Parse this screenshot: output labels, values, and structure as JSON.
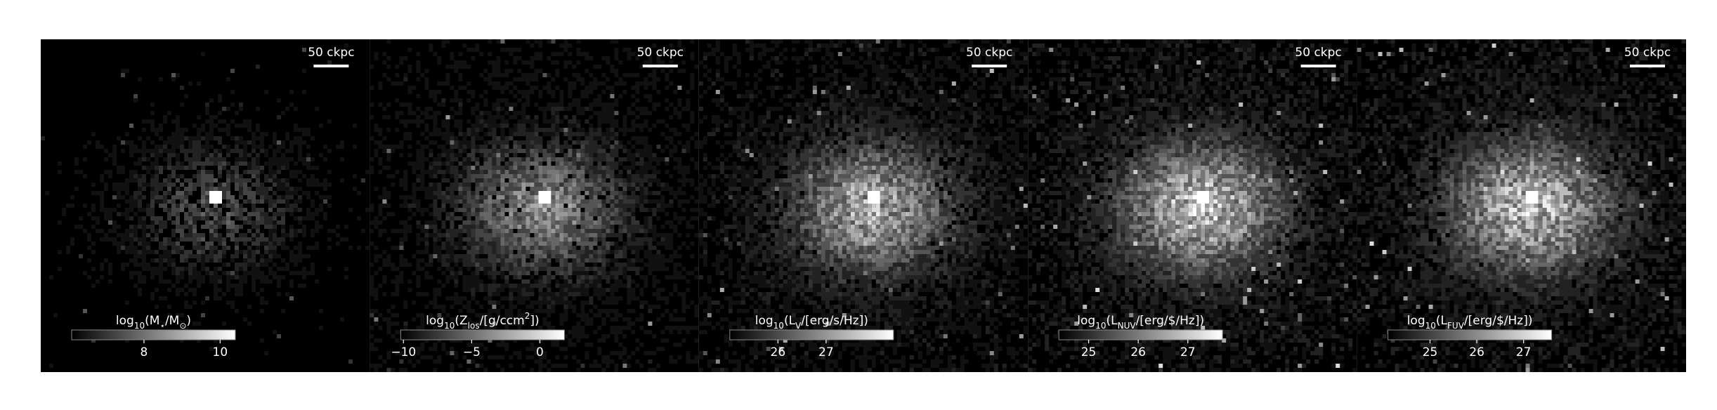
{
  "panels": [
    {
      "scale_bar": "50 ckpc",
      "colorbar": {
        "label": [
          "log",
          "10",
          "(M",
          "⋆",
          "/M",
          "⊙",
          ")"
        ],
        "lim": [
          6.1,
          10.4
        ],
        "ticks": [
          8,
          10
        ]
      },
      "brightness": 0.35
    },
    {
      "scale_bar": "50 ckpc",
      "colorbar": {
        "label": [
          "log",
          "10",
          "(Z",
          "los",
          "/[g/ccm",
          "2",
          "])"
        ],
        "lim": [
          -10.2,
          1.8
        ],
        "ticks": [
          {
            "value": -10,
            "label": "−10"
          },
          {
            "value": -5,
            "label": "−5"
          },
          0
        ]
      },
      "brightness": 0.6
    },
    {
      "scale_bar": "50 ckpc",
      "colorbar": {
        "label": [
          "log",
          "10",
          "(L",
          "V",
          "/[erg/s/Hz])"
        ],
        "lim": [
          25.0,
          28.4
        ],
        "ticks": [
          26,
          27
        ]
      },
      "brightness": 0.75
    },
    {
      "scale_bar": "50 ckpc",
      "colorbar": {
        "label": [
          "log",
          "10",
          "(L",
          "NUV",
          "/[erg/$/Hz])"
        ],
        "lim": [
          24.4,
          27.7
        ],
        "ticks": [
          25,
          26,
          27
        ]
      },
      "brightness": 0.85
    },
    {
      "scale_bar": "50 ckpc",
      "colorbar": {
        "label": [
          "log",
          "10",
          "(L",
          "FUV",
          "/[erg/$/Hz])"
        ],
        "lim": [
          24.1,
          27.6
        ],
        "ticks": [
          25,
          26,
          27
        ]
      },
      "brightness": 0.85
    }
  ]
}
